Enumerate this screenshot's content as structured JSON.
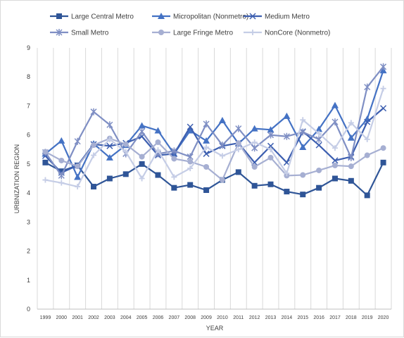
{
  "chart_data": {
    "type": "line",
    "title": "",
    "xlabel": "YEAR",
    "ylabel": "URBNIZATION REGION",
    "ylim": [
      0,
      9
    ],
    "yticks": [
      "0",
      "1",
      "2",
      "3",
      "4",
      "5",
      "6",
      "7",
      "8",
      "9"
    ],
    "grid": "vertical",
    "legend_position": "top",
    "categories": [
      "1999",
      "2000",
      "2001",
      "2002",
      "2003",
      "2004",
      "2005",
      "2006",
      "2007",
      "2008",
      "2009",
      "2010",
      "2011",
      "2012",
      "2013",
      "2014",
      "2015",
      "2016",
      "2017",
      "2018",
      "2019",
      "2020"
    ],
    "series": [
      {
        "name": "Large Central Metro",
        "color": "#2f5597",
        "marker": "square",
        "values": [
          5.05,
          4.75,
          4.95,
          4.22,
          4.5,
          4.65,
          5.0,
          4.62,
          4.18,
          4.28,
          4.1,
          4.45,
          4.72,
          4.25,
          4.3,
          4.05,
          3.95,
          4.18,
          4.5,
          4.42,
          3.92,
          5.05
        ]
      },
      {
        "name": "Micropolitan (Nonmetro)",
        "color": "#4472c4",
        "marker": "triangle",
        "values": [
          5.35,
          5.8,
          4.55,
          5.7,
          5.22,
          5.65,
          6.32,
          6.15,
          5.35,
          6.15,
          5.8,
          6.5,
          5.7,
          6.22,
          6.18,
          6.65,
          5.58,
          6.2,
          7.02,
          5.9,
          6.55,
          8.22
        ]
      },
      {
        "name": "Medium Metro",
        "color": "#3d5fb0",
        "marker": "x",
        "values": [
          5.28,
          4.7,
          4.95,
          5.68,
          5.62,
          5.72,
          5.95,
          5.3,
          5.35,
          6.28,
          5.35,
          5.62,
          5.72,
          5.05,
          5.62,
          5.05,
          6.12,
          5.65,
          5.12,
          5.25,
          6.45,
          6.92
        ]
      },
      {
        "name": "Small Metro",
        "color": "#7f8fc4",
        "marker": "star",
        "values": [
          5.4,
          4.6,
          5.78,
          6.8,
          6.35,
          5.35,
          6.12,
          5.35,
          5.45,
          5.25,
          6.38,
          5.65,
          6.22,
          5.55,
          6.0,
          5.95,
          6.1,
          5.85,
          6.45,
          5.22,
          7.65,
          8.35
        ]
      },
      {
        "name": "Large Fringe Metro",
        "color": "#a6afd2",
        "marker": "circle",
        "values": [
          5.42,
          5.12,
          4.92,
          5.65,
          5.88,
          5.68,
          5.25,
          5.75,
          5.18,
          5.08,
          4.9,
          4.45,
          5.72,
          4.9,
          5.22,
          4.6,
          4.62,
          4.78,
          4.95,
          4.92,
          5.3,
          5.55
        ]
      },
      {
        "name": "NonCore (Nonmetro)",
        "color": "#c5cde6",
        "marker": "plus",
        "values": [
          4.45,
          4.35,
          4.22,
          5.3,
          5.85,
          5.42,
          4.5,
          5.48,
          4.55,
          4.85,
          5.58,
          5.28,
          5.5,
          5.75,
          5.5,
          4.68,
          6.52,
          6.05,
          5.55,
          6.42,
          5.85,
          7.6
        ]
      }
    ]
  }
}
